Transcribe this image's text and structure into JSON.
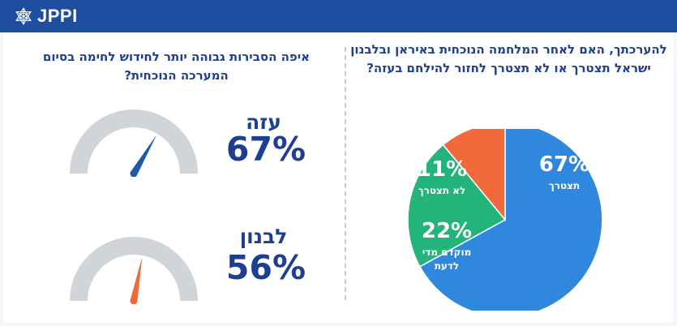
{
  "header": {
    "logo_text": "JPPI"
  },
  "left": {
    "question": "איפה הסבירות גבוהה יותר לחידוש לחימה בסיום המערכה הנוכחית?",
    "gauges": [
      {
        "label": "עזה",
        "percent_text": "67%",
        "value": 67,
        "needle_color": "#1f5aa8"
      },
      {
        "label": "לבנון",
        "percent_text": "56%",
        "value": 56,
        "needle_color": "#f26a3c"
      }
    ]
  },
  "right": {
    "question": "להערכתך, האם לאחר המלחמה הנוכחית באיראן ובלבנון ישראל תצטרך או לא תצטרך לחזור להילחם בעזה?"
  },
  "chart_data": {
    "type": "pie",
    "title": "להערכתך, האם לאחר המלחמה הנוכחית באיראן ובלבנון ישראל תצטרך או לא תצטרך לחזור להילחם בעזה?",
    "slices": [
      {
        "name": "תצטרך",
        "value": 67,
        "value_text": "67%",
        "color": "#2f88de"
      },
      {
        "name": "מוקדם מדי לדעת",
        "value": 22,
        "value_text": "22%",
        "color": "#22b47a"
      },
      {
        "name": "לא תצטרך",
        "value": 11,
        "value_text": "11%",
        "color": "#f26a3c"
      }
    ],
    "gauges": [
      {
        "category": "עזה",
        "value": 67
      },
      {
        "category": "לבנון",
        "value": 56
      }
    ]
  },
  "colors": {
    "brand": "#1e4ea0",
    "text": "#1e3f8f",
    "gauge_track": "#d1d4d8"
  }
}
